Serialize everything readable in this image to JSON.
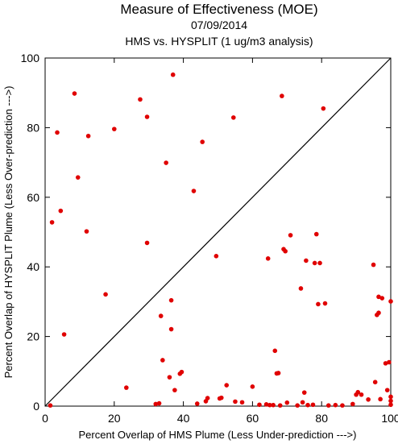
{
  "chart_data": {
    "type": "scatter",
    "title": "Measure of Effectiveness (MOE)",
    "subtitle": "07/09/2014",
    "subtitle2": "HMS vs. HYSPLIT  (1 ug/m3 analysis)",
    "xlabel": "Percent Overlap of HMS Plume (Less Under-prediction --->)",
    "ylabel": "Percent Overlap of HYSPLIT Plume (Less Over-prediction --->)",
    "xlim": [
      0,
      100
    ],
    "ylim": [
      0,
      100
    ],
    "x_ticks": [
      "0",
      "20",
      "40",
      "60",
      "80",
      "100"
    ],
    "y_ticks": [
      "0",
      "20",
      "40",
      "60",
      "80",
      "100"
    ],
    "grid": false,
    "reference_line": "diagonal y = x",
    "point_color": "#e00000",
    "points": [
      [
        1.5,
        0.2
      ],
      [
        2,
        52.8
      ],
      [
        3.5,
        78.6
      ],
      [
        4.5,
        56.1
      ],
      [
        5.5,
        20.6
      ],
      [
        8.5,
        89.8
      ],
      [
        9.5,
        65.7
      ],
      [
        12,
        50.2
      ],
      [
        12.5,
        77.6
      ],
      [
        17.5,
        32.1
      ],
      [
        20,
        79.6
      ],
      [
        23.5,
        5.3
      ],
      [
        27.5,
        88.1
      ],
      [
        29.5,
        46.9
      ],
      [
        29.5,
        83.1
      ],
      [
        32,
        0.6
      ],
      [
        33,
        0.8
      ],
      [
        33.5,
        25.9
      ],
      [
        34,
        13.2
      ],
      [
        35,
        69.9
      ],
      [
        36,
        8.3
      ],
      [
        36.5,
        30.4
      ],
      [
        36.5,
        22.1
      ],
      [
        37,
        95.2
      ],
      [
        37.5,
        4.6
      ],
      [
        39,
        9.3
      ],
      [
        39.5,
        9.8
      ],
      [
        43,
        61.8
      ],
      [
        44,
        0.7
      ],
      [
        45.5,
        75.9
      ],
      [
        46.5,
        1.4
      ],
      [
        47,
        2.3
      ],
      [
        49.5,
        43.1
      ],
      [
        50.5,
        2.2
      ],
      [
        51,
        2.4
      ],
      [
        52.5,
        6.0
      ],
      [
        54.5,
        82.9
      ],
      [
        55,
        1.3
      ],
      [
        57,
        1.1
      ],
      [
        60,
        5.6
      ],
      [
        62,
        0.4
      ],
      [
        64,
        0.5
      ],
      [
        64.5,
        42.4
      ],
      [
        65,
        0.3
      ],
      [
        66,
        0.3
      ],
      [
        66.5,
        15.9
      ],
      [
        67,
        9.4
      ],
      [
        67.5,
        9.5
      ],
      [
        68,
        0.2
      ],
      [
        68.5,
        89.1
      ],
      [
        69,
        45.1
      ],
      [
        69.5,
        44.5
      ],
      [
        70,
        1.0
      ],
      [
        71,
        49.1
      ],
      [
        73,
        0.2
      ],
      [
        74,
        33.8
      ],
      [
        74.5,
        1.1
      ],
      [
        75,
        3.9
      ],
      [
        75.5,
        41.8
      ],
      [
        76,
        0.3
      ],
      [
        77.5,
        0.4
      ],
      [
        78,
        41.1
      ],
      [
        78.5,
        49.4
      ],
      [
        79,
        29.3
      ],
      [
        79.5,
        41.1
      ],
      [
        80.5,
        85.5
      ],
      [
        81,
        29.5
      ],
      [
        82,
        0.2
      ],
      [
        84,
        0.3
      ],
      [
        86,
        0.2
      ],
      [
        89,
        0.6
      ],
      [
        90,
        3.3
      ],
      [
        90.5,
        4.0
      ],
      [
        91.5,
        3.3
      ],
      [
        93.5,
        1.9
      ],
      [
        95,
        40.6
      ],
      [
        95.5,
        6.9
      ],
      [
        96,
        26.2
      ],
      [
        96.5,
        26.8
      ],
      [
        96.5,
        31.4
      ],
      [
        97,
        2.0
      ],
      [
        97.5,
        31.0
      ],
      [
        98.5,
        12.3
      ],
      [
        99,
        4.6
      ],
      [
        99.5,
        12.6
      ],
      [
        100,
        30.1
      ],
      [
        100,
        0.4
      ],
      [
        100,
        1.5
      ],
      [
        100,
        2.7
      ]
    ]
  }
}
